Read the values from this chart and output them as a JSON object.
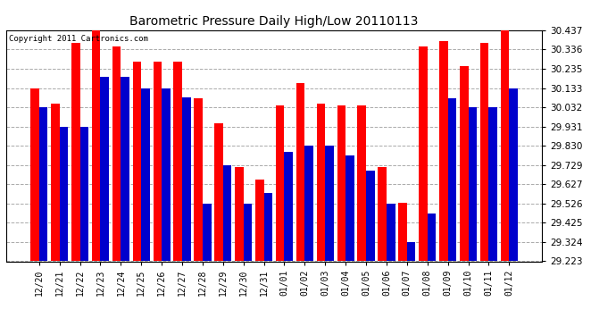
{
  "title": "Barometric Pressure Daily High/Low 20110113",
  "copyright": "Copyright 2011 Cartronics.com",
  "categories": [
    "12/20",
    "12/21",
    "12/22",
    "12/23",
    "12/24",
    "12/25",
    "12/26",
    "12/27",
    "12/28",
    "12/29",
    "12/30",
    "12/31",
    "01/01",
    "01/02",
    "01/03",
    "01/04",
    "01/05",
    "01/06",
    "01/07",
    "01/08",
    "01/09",
    "01/10",
    "01/11",
    "01/12"
  ],
  "highs": [
    30.133,
    30.05,
    30.37,
    30.435,
    30.35,
    30.27,
    30.27,
    30.27,
    30.08,
    29.95,
    29.72,
    29.65,
    30.04,
    30.16,
    30.05,
    30.04,
    30.04,
    29.72,
    29.53,
    30.35,
    30.38,
    30.25,
    30.37,
    30.437
  ],
  "lows": [
    30.032,
    29.931,
    29.931,
    30.19,
    30.19,
    30.133,
    30.133,
    30.084,
    29.526,
    29.729,
    29.526,
    29.58,
    29.8,
    29.83,
    29.83,
    29.78,
    29.7,
    29.526,
    29.324,
    29.475,
    30.08,
    30.032,
    30.032,
    30.133
  ],
  "bar_color_high": "#FF0000",
  "bar_color_low": "#0000CC",
  "bg_color": "#FFFFFF",
  "plot_bg_color": "#FFFFFF",
  "grid_color": "#AAAAAA",
  "ymin": 29.223,
  "ymax": 30.437,
  "yticks": [
    29.223,
    29.324,
    29.425,
    29.526,
    29.627,
    29.729,
    29.83,
    29.931,
    30.032,
    30.133,
    30.235,
    30.336,
    30.437
  ]
}
